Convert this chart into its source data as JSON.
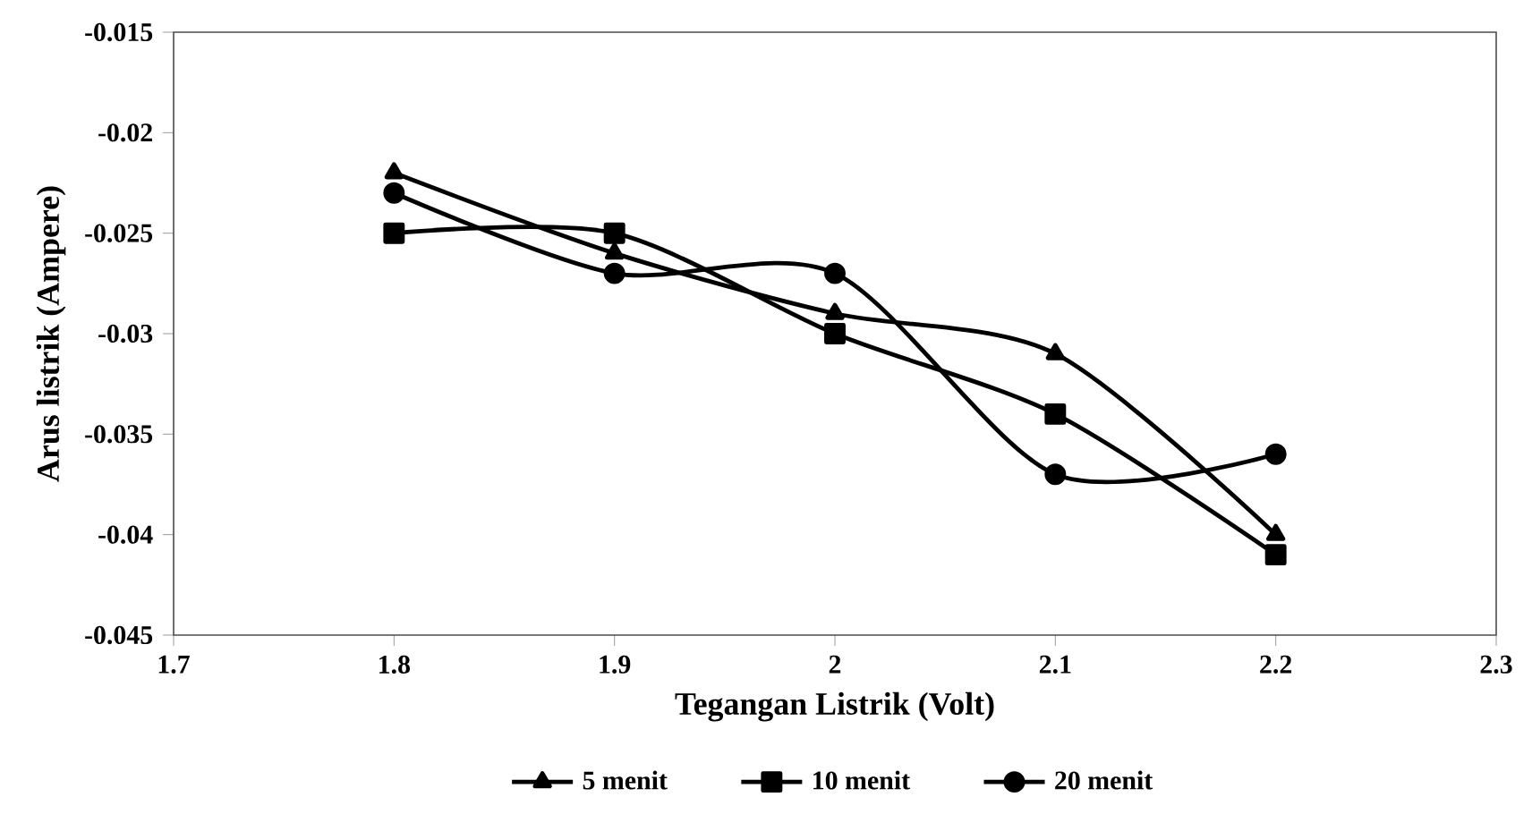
{
  "chart_data": {
    "type": "line",
    "xlabel": "Tegangan Listrik  (Volt)",
    "ylabel": "Arus listrik  (Ampere)",
    "x": [
      1.8,
      1.9,
      2,
      2.1,
      2.2
    ],
    "series": [
      {
        "name": "5 menit",
        "color": "#000000",
        "marker": "triangle",
        "values": [
          -0.022,
          -0.026,
          -0.029,
          -0.031,
          -0.04
        ]
      },
      {
        "name": "10 menit",
        "color": "#000000",
        "marker": "square",
        "values": [
          -0.025,
          -0.025,
          -0.03,
          -0.034,
          -0.041
        ]
      },
      {
        "name": "20 menit",
        "color": "#000000",
        "marker": "circle",
        "values": [
          -0.023,
          -0.027,
          -0.027,
          -0.037,
          -0.036
        ]
      }
    ],
    "xlim": [
      1.7,
      2.3
    ],
    "xticks": [
      1.7,
      1.8,
      1.9,
      2,
      2.1,
      2.2,
      2.3
    ],
    "ylim": [
      -0.045,
      -0.015
    ],
    "yticks": [
      -0.045,
      -0.04,
      -0.035,
      -0.03,
      -0.025,
      -0.02,
      -0.015
    ],
    "grid": false,
    "legend": "bottom",
    "line_style": "solid"
  }
}
